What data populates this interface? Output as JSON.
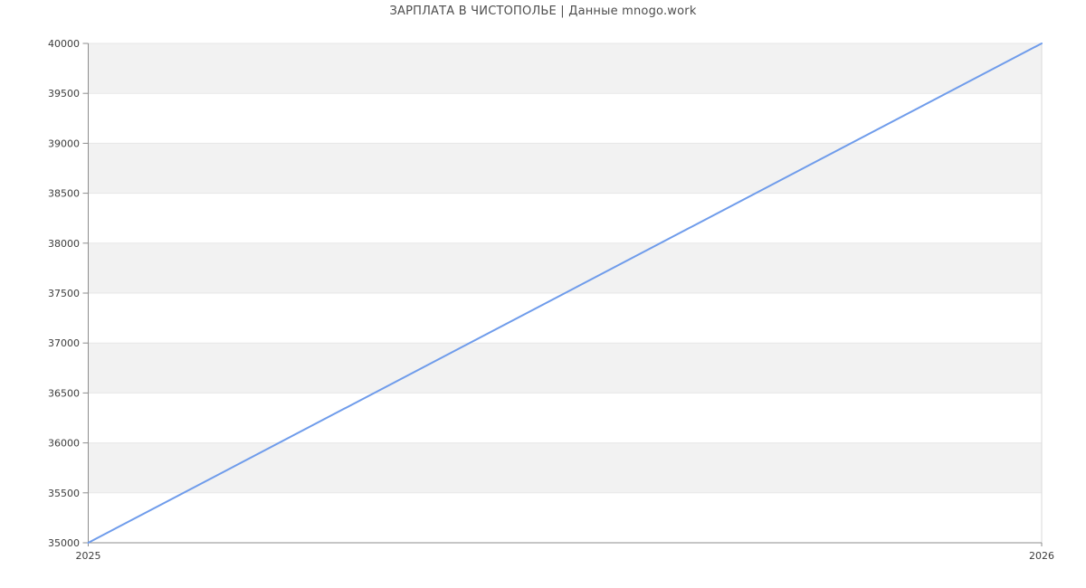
{
  "header": {
    "title": "ЗАРПЛАТА В ЧИСТОПОЛЬЕ | Данные mnogo.work"
  },
  "chart_data": {
    "type": "line",
    "title": "ЗАРПЛАТА В ЧИСТОПОЛЬЕ | Данные mnogo.work",
    "x": [
      2025,
      2026
    ],
    "series": [
      {
        "name": "ЗАРПЛАТА В ЧИСТОПОЛЬЕ",
        "values": [
          35000,
          40000
        ],
        "color": "#6f9ceb"
      }
    ],
    "xlabel": "",
    "ylabel": "",
    "xlim": [
      2025,
      2026
    ],
    "ylim": [
      35000,
      40000
    ],
    "ytick_step": 500,
    "xtick_labels": [
      "2025",
      "2026"
    ],
    "ytick_labels": [
      "35000",
      "35500",
      "36000",
      "36500",
      "37000",
      "37500",
      "38000",
      "38500",
      "39000",
      "39500",
      "40000"
    ],
    "grid": "horizontal",
    "legend": "none",
    "plot_style": {
      "band_fill": "#f2f2f2",
      "band_pattern": "alternating-from-top",
      "grid_color": "#e7e7e7",
      "axis_color": "#8d8d8d",
      "right_border_color": "#d9d9d9",
      "tick_label_color": "#3d3d3d",
      "title_color": "#4d4d4d",
      "background": "#ffffff",
      "line_width": 2
    }
  }
}
